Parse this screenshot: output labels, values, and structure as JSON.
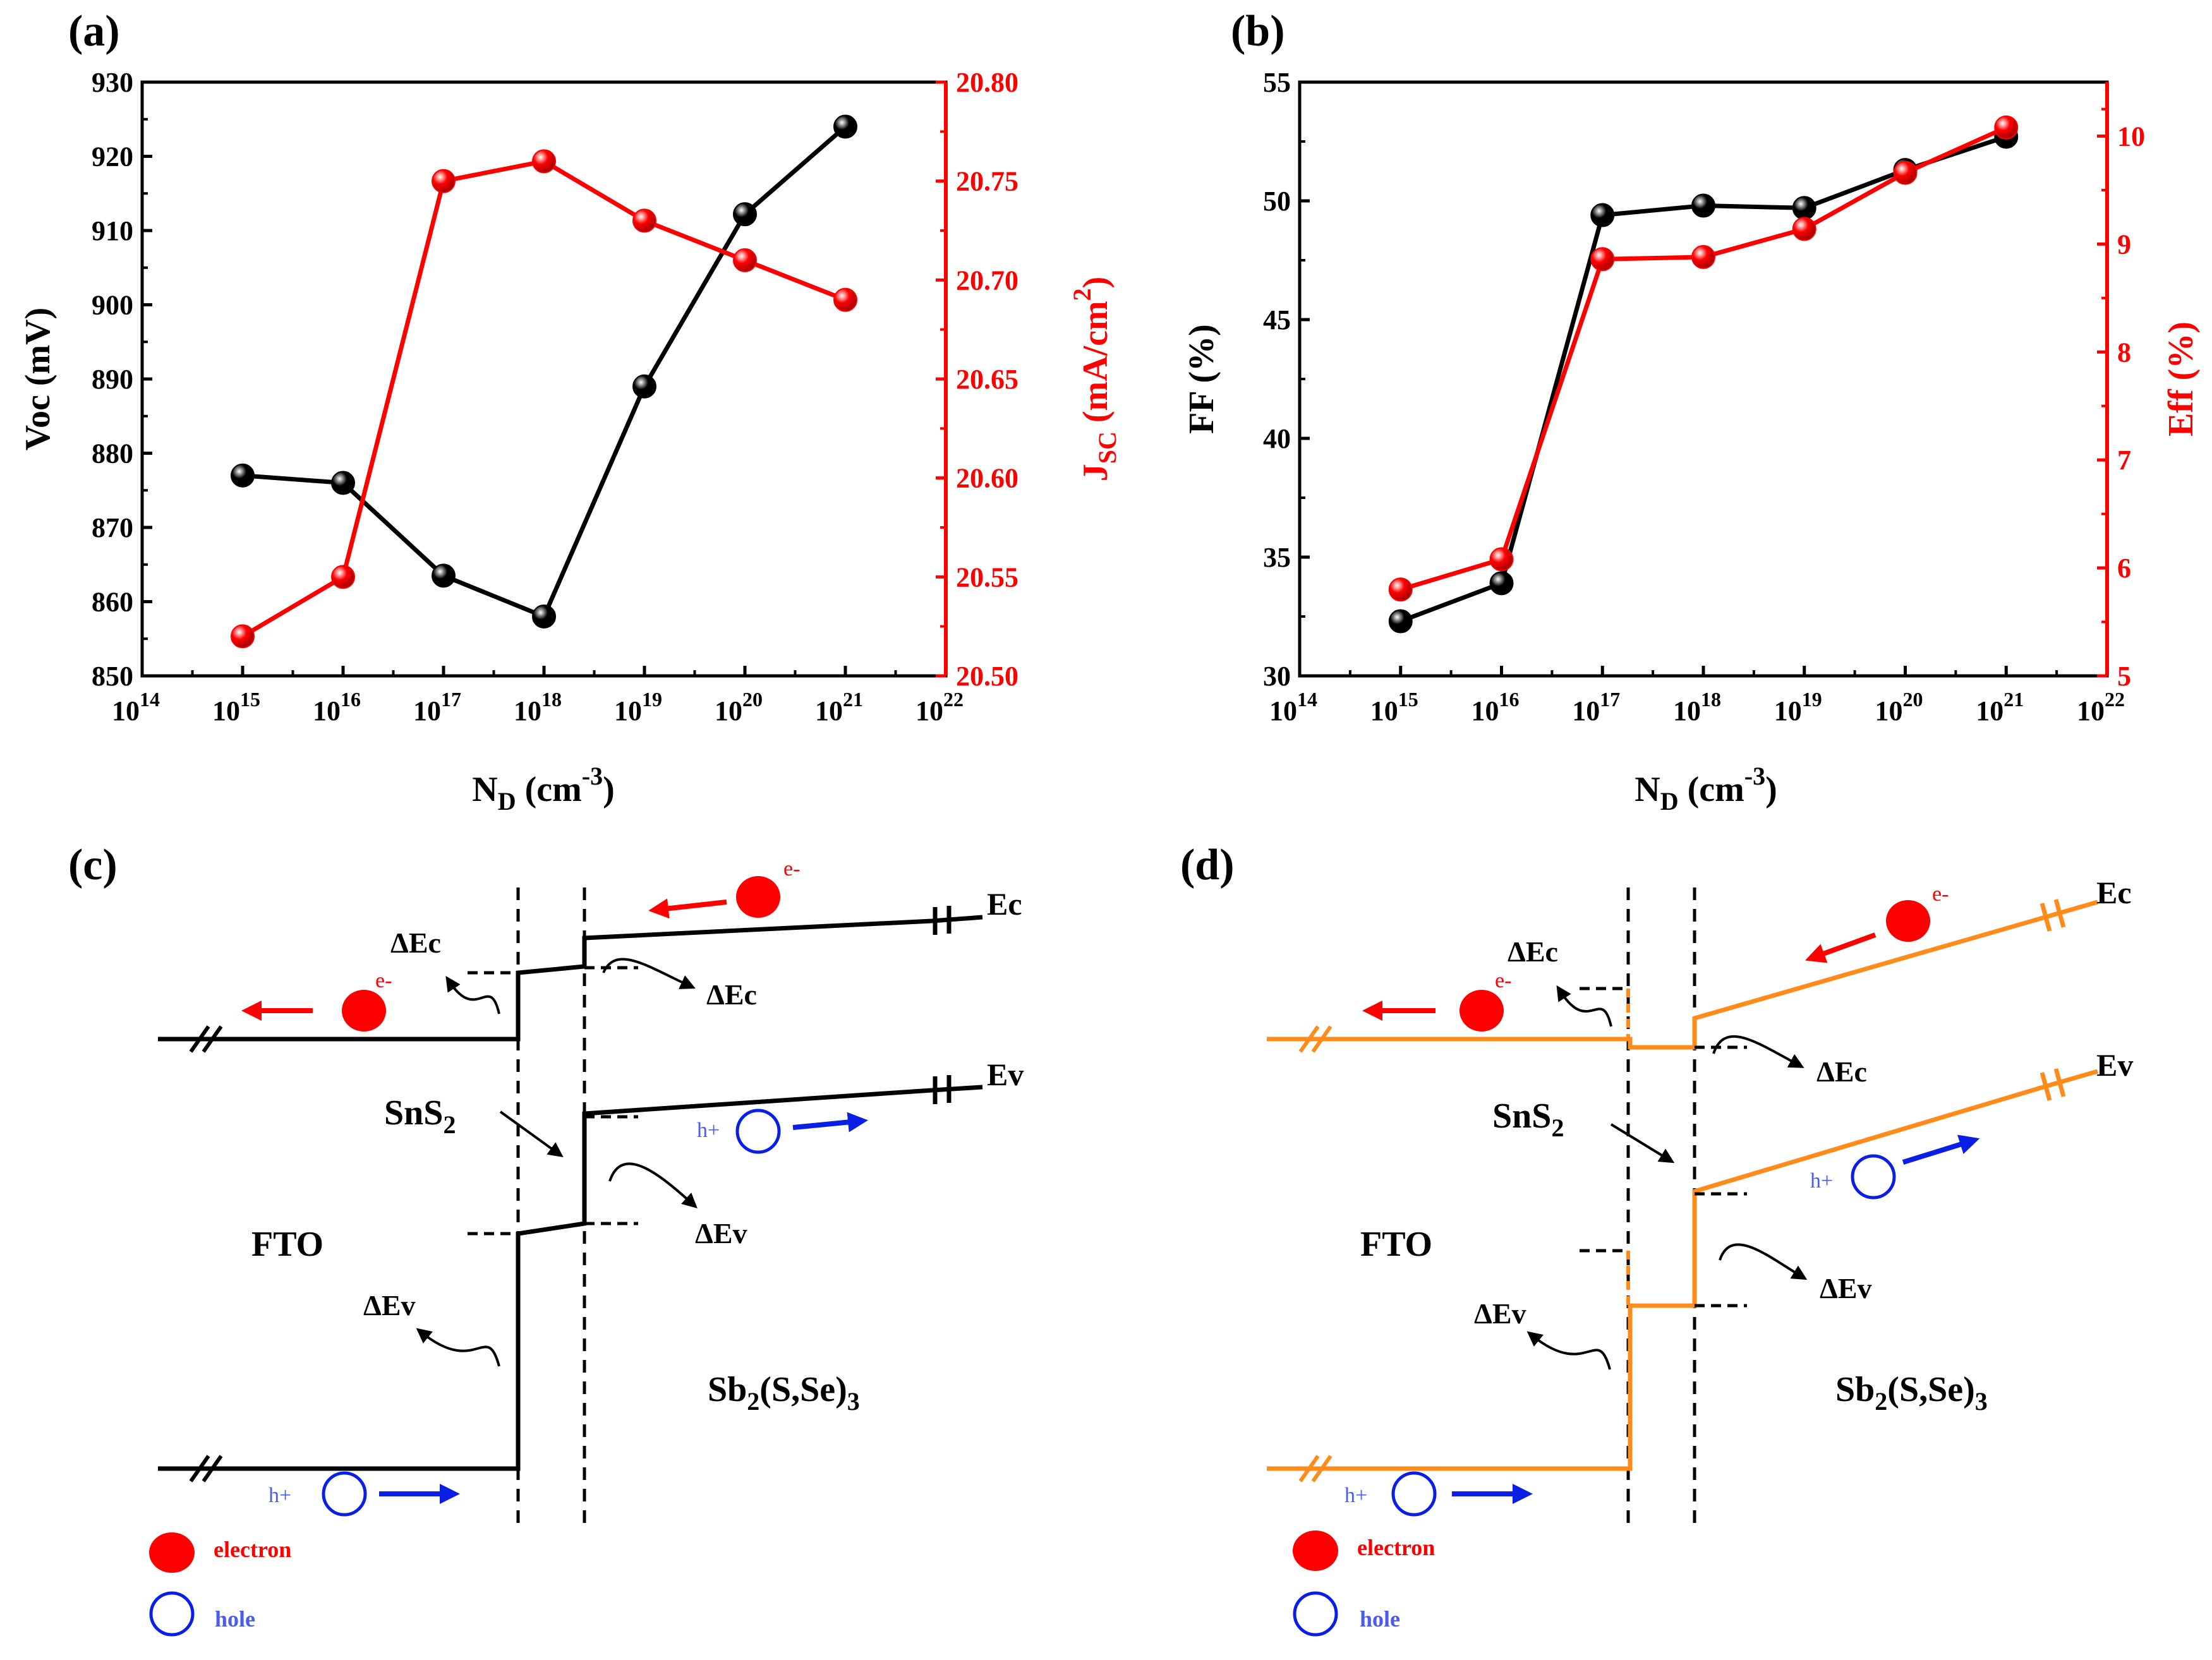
{
  "figure": {
    "panel_labels": [
      "(a)",
      "(b)",
      "(c)",
      "(d)"
    ]
  },
  "chart_data": [
    {
      "type": "line",
      "panel": "(a)",
      "title": "",
      "xlabel": "N_D (cm^-3)",
      "xlabel_main": "N",
      "xlabel_sub": "D",
      "xlabel_unit": "(cm",
      "xlabel_sup": "-3",
      "xlabel_close": ")",
      "x_scale": "log",
      "xlim_exp": [
        14,
        22
      ],
      "x_exponents": [
        15,
        16,
        17,
        18,
        19,
        20,
        21
      ],
      "x_tick_exponents": [
        14,
        15,
        16,
        17,
        18,
        19,
        20,
        21,
        22
      ],
      "x_tick_base": "10",
      "y_left": {
        "label": "Voc (mV)",
        "color": "#000000",
        "lim": [
          850,
          930
        ],
        "ticks": [
          "850",
          "860",
          "870",
          "880",
          "890",
          "900",
          "910",
          "920",
          "930"
        ]
      },
      "y_right": {
        "label": "J_SC (mA/cm^2)",
        "label_main": "J",
        "label_sub": "SC",
        "label_unit": " (mA/cm",
        "label_sup": "2",
        "label_close": ")",
        "color": "#ff0000",
        "lim": [
          20.5,
          20.8
        ],
        "ticks": [
          "20.50",
          "20.55",
          "20.60",
          "20.65",
          "20.70",
          "20.75",
          "20.80"
        ]
      },
      "series": [
        {
          "name": "Voc",
          "axis": "left",
          "color": "#000000",
          "values": [
            877.0,
            876.0,
            863.5,
            858.0,
            889.0,
            912.2,
            924.0
          ]
        },
        {
          "name": "Jsc",
          "axis": "right",
          "color": "#ff0000",
          "values": [
            20.52,
            20.55,
            20.75,
            20.76,
            20.73,
            20.71,
            20.69
          ]
        }
      ]
    },
    {
      "type": "line",
      "panel": "(b)",
      "title": "",
      "xlabel": "N_D (cm^-3)",
      "xlabel_main": "N",
      "xlabel_sub": "D",
      "xlabel_unit": "(cm",
      "xlabel_sup": "-3",
      "xlabel_close": ")",
      "x_scale": "log",
      "xlim_exp": [
        14,
        22
      ],
      "x_exponents": [
        15,
        16,
        17,
        18,
        19,
        20,
        21
      ],
      "x_tick_exponents": [
        14,
        15,
        16,
        17,
        18,
        19,
        20,
        21,
        22
      ],
      "x_tick_base": "10",
      "y_left": {
        "label": "FF (%)",
        "color": "#000000",
        "lim": [
          30,
          55
        ],
        "ticks": [
          "30",
          "35",
          "40",
          "45",
          "50",
          "55"
        ]
      },
      "y_right": {
        "label": "Eff (%)",
        "color": "#ff0000",
        "lim": [
          5,
          10.5
        ],
        "ticks": [
          "5",
          "6",
          "7",
          "8",
          "9",
          "10"
        ]
      },
      "series": [
        {
          "name": "FF",
          "axis": "left",
          "color": "#000000",
          "values": [
            32.3,
            33.9,
            49.4,
            49.8,
            49.7,
            51.3,
            52.7
          ]
        },
        {
          "name": "Eff",
          "axis": "right",
          "color": "#ff0000",
          "values": [
            5.8,
            6.08,
            8.86,
            8.88,
            9.14,
            9.66,
            10.08
          ]
        }
      ]
    }
  ],
  "diagram_c": {
    "panel": "(c)",
    "line_color": "#000000",
    "labels": {
      "dEc_top": "ΔEc",
      "dEc_right": "ΔEc",
      "dEv_mid": "ΔEv",
      "dEv_left": "ΔEv",
      "snS2_main": "SnS",
      "snS2_sub": "2",
      "fto": "FTO",
      "sb_main": "Sb",
      "sb_sub1": "2",
      "sb_mid": "(S,Se)",
      "sb_sub2": "3",
      "ec": "Ec",
      "ev": "Ev",
      "e_minus": "e-",
      "h_plus": "h+"
    }
  },
  "diagram_d": {
    "panel": "(d)",
    "line_color": "#ff8c1a",
    "labels": {
      "dEc_top": "ΔEc",
      "dEc_right": "ΔEc",
      "dEv_mid": "ΔEv",
      "dEv_left": "ΔEv",
      "snS2_main": "SnS",
      "snS2_sub": "2",
      "fto": "FTO",
      "sb_main": "Sb",
      "sb_sub1": "2",
      "sb_mid": "(S,Se)",
      "sb_sub2": "3",
      "ec": "Ec",
      "ev": "Ev",
      "e_minus": "e-",
      "h_plus": "h+"
    }
  },
  "legend": {
    "electron": "electron",
    "hole": "hole"
  },
  "colors": {
    "black": "#000000",
    "red": "#ff0000",
    "blue": "#0a1fe6",
    "hole_label": "#4a5cf0",
    "orange": "#ff8c1a"
  }
}
